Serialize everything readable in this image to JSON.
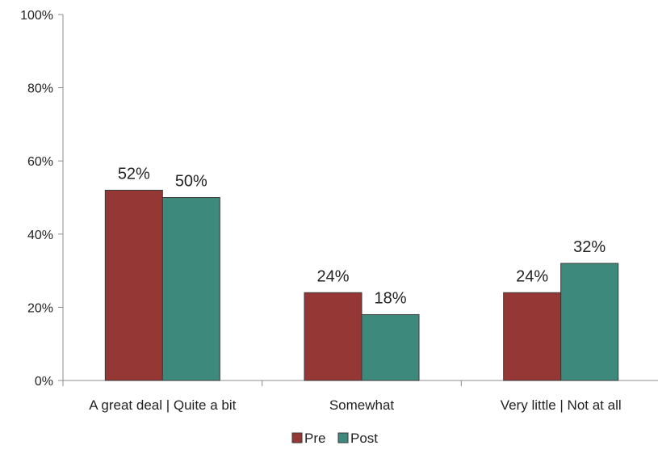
{
  "chart_data": {
    "type": "bar",
    "categories": [
      "A great deal | Quite a bit",
      "Somewhat",
      "Very little | Not at all"
    ],
    "series": [
      {
        "name": "Pre",
        "values": [
          52,
          24,
          24
        ],
        "color": "#953735"
      },
      {
        "name": "Post",
        "values": [
          50,
          18,
          32
        ],
        "color": "#3d8a7c"
      }
    ],
    "ylim": [
      0,
      100
    ],
    "yticks": [
      0,
      20,
      40,
      60,
      80,
      100
    ],
    "value_suffix": "%",
    "grid": false,
    "legend": "bottom"
  }
}
